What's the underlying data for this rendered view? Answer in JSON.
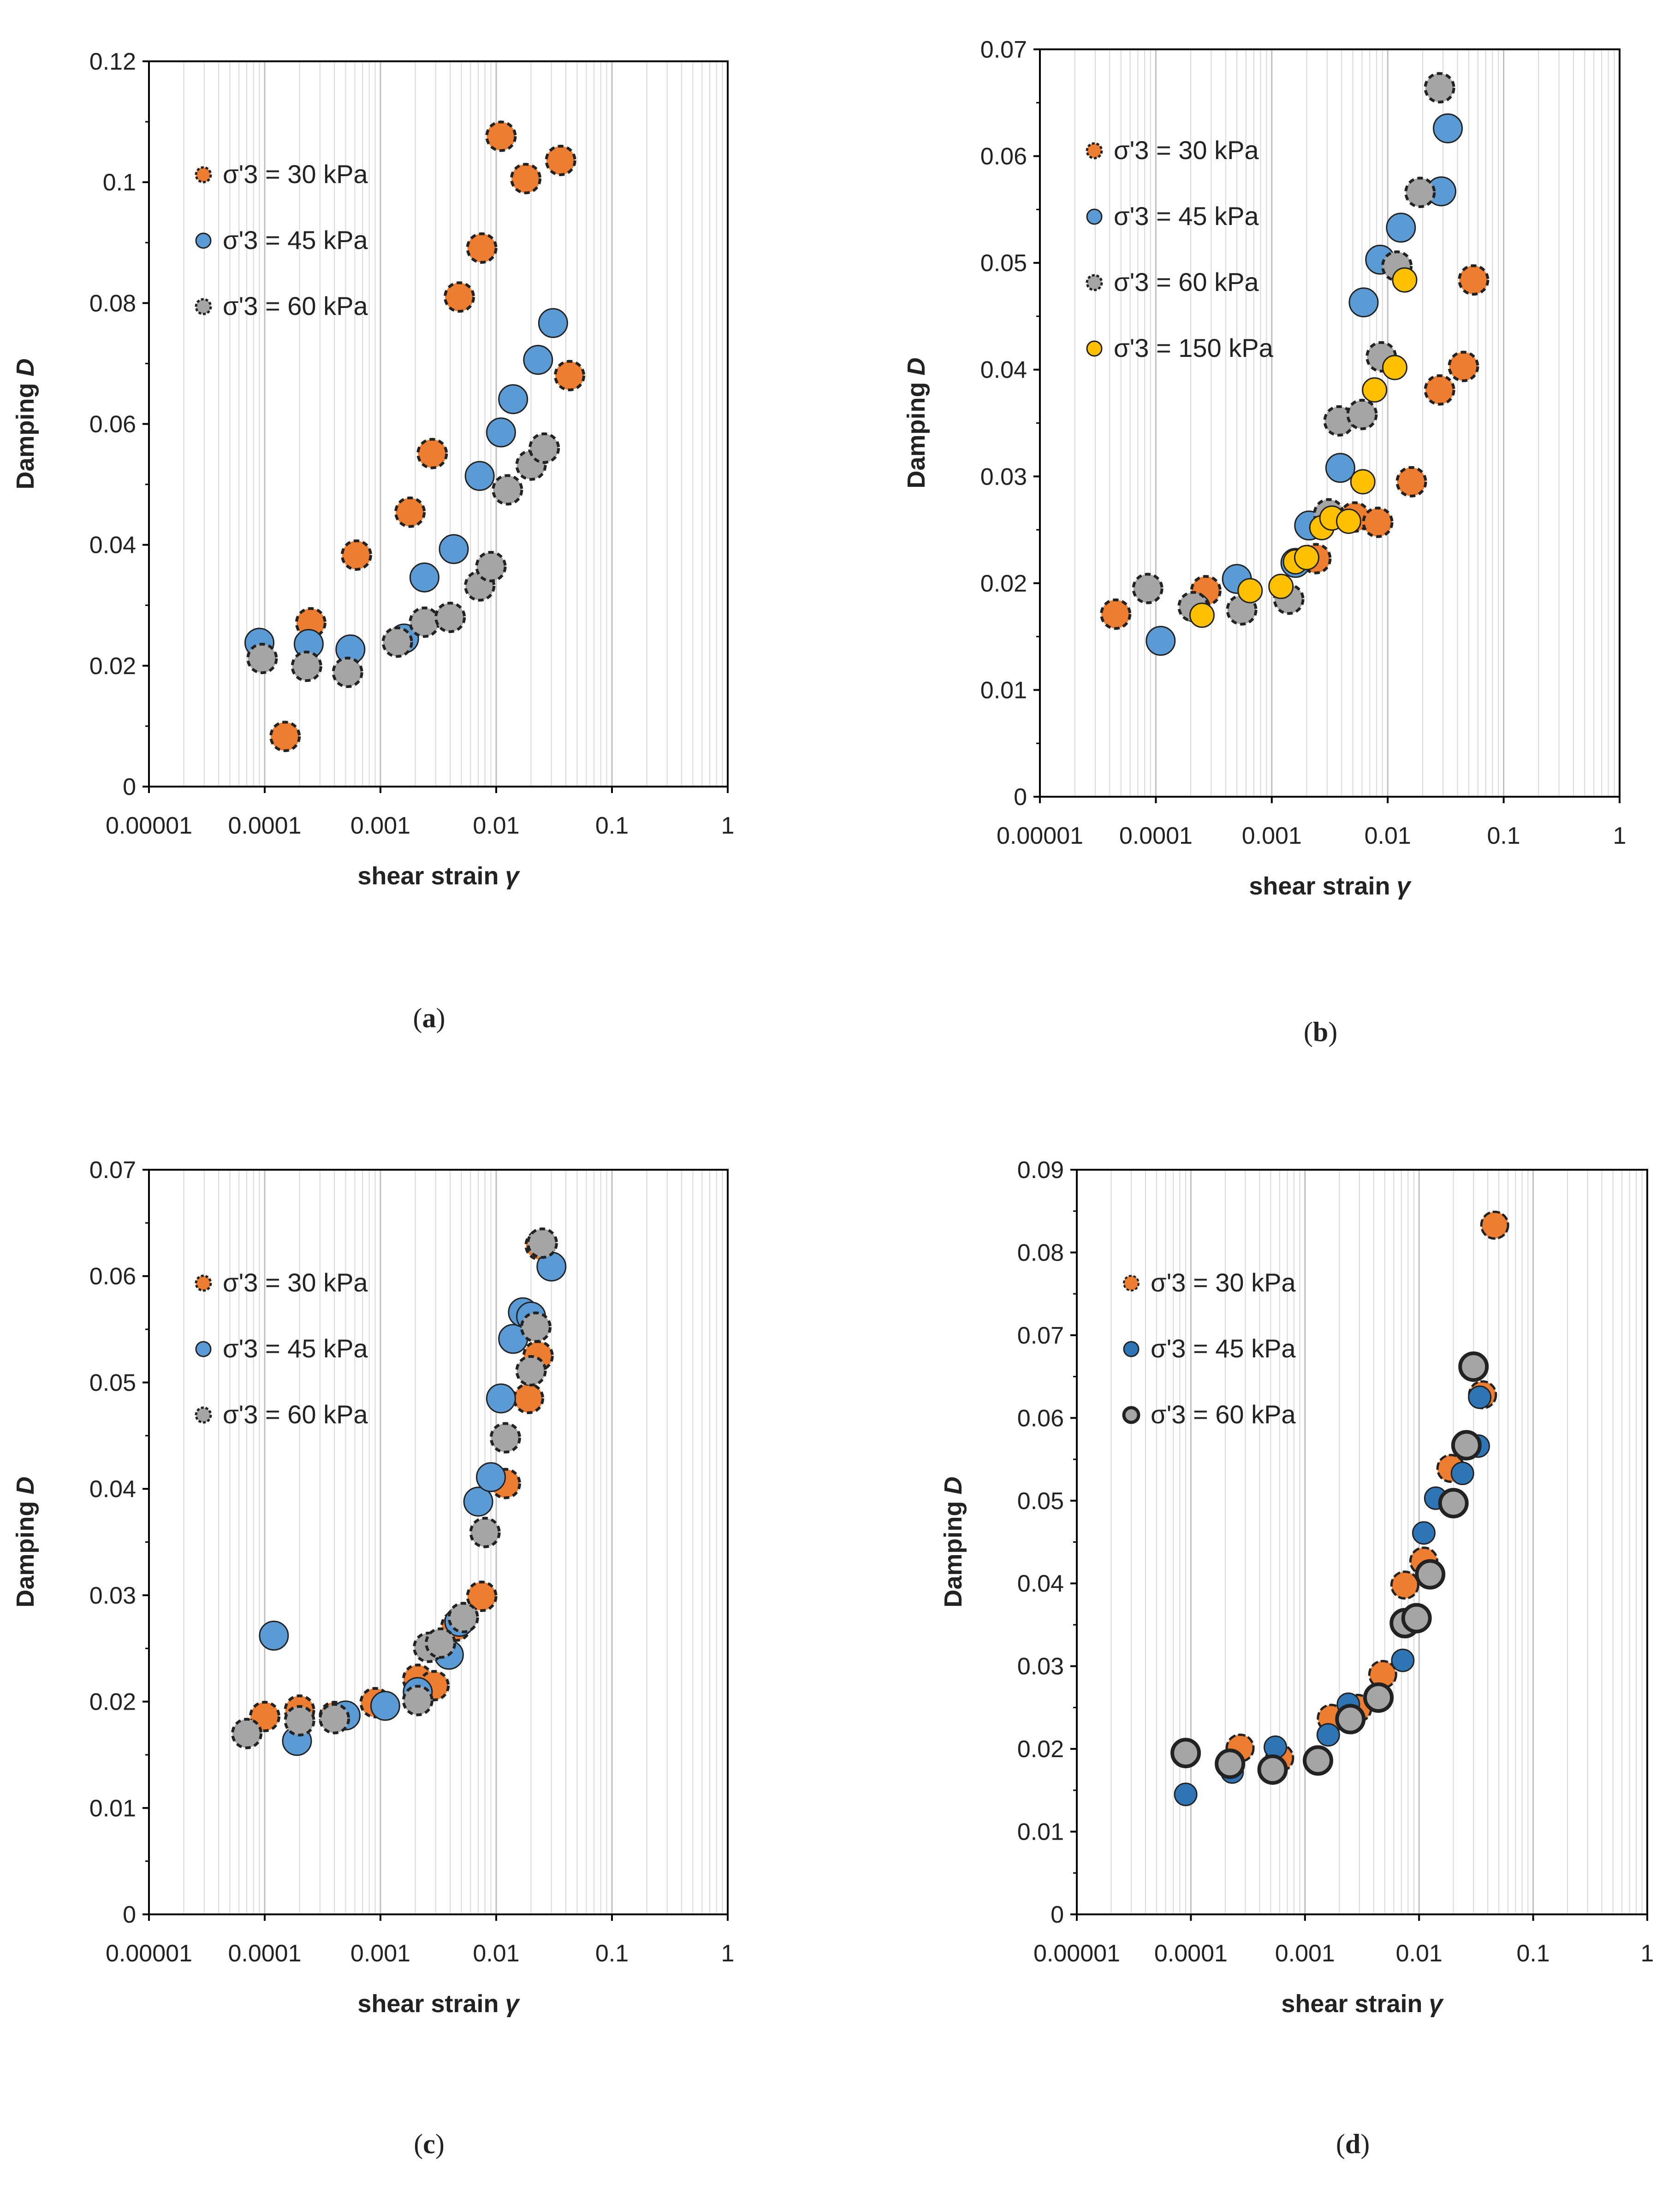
{
  "figure": {
    "panels": [
      {
        "id": "a",
        "label": "(a)",
        "label_letter": "a"
      },
      {
        "id": "b",
        "label": "(b)",
        "label_letter": "b"
      },
      {
        "id": "c",
        "label": "(c)",
        "label_letter": "c"
      },
      {
        "id": "d",
        "label": "(d)",
        "label_letter": "d"
      }
    ]
  },
  "colors": {
    "orange": "#ED7D31",
    "blue": "#5B9BD5",
    "blue_dark": "#2E75B6",
    "gray": "#A5A5A5",
    "yellow": "#FFC000",
    "outline": "#222222",
    "grid_minor": "#D9D9D9",
    "grid_major": "#BFBFBF"
  },
  "chart_data": [
    {
      "id": "a",
      "type": "scatter",
      "title": "",
      "xlabel": "shear strain",
      "xlabel_symbol": "γ",
      "ylabel": "Damping",
      "ylabel_symbol": "D",
      "x_scale": "log",
      "xlim": [
        1e-05,
        1
      ],
      "ylim": [
        0,
        0.12
      ],
      "x_ticks": [
        "0.00001",
        "0.0001",
        "0.001",
        "0.01",
        "0.1",
        "1"
      ],
      "y_ticks": [
        "0",
        "0.02",
        "0.04",
        "0.06",
        "0.08",
        "0.1",
        "0.12"
      ],
      "grid": "vertical, log minor",
      "legend_position": "left",
      "series": [
        {
          "name": "σ'3 = 30 kPa",
          "style": "orange-dashed",
          "points": [
            [
              0.00015,
              0.0083
            ],
            [
              0.00025,
              0.0271
            ],
            [
              0.00062,
              0.0383
            ],
            [
              0.0018,
              0.0454
            ],
            [
              0.0028,
              0.0551
            ],
            [
              0.0048,
              0.081
            ],
            [
              0.0075,
              0.0891
            ],
            [
              0.011,
              0.1076
            ],
            [
              0.018,
              0.1006
            ],
            [
              0.036,
              0.1036
            ],
            [
              0.043,
              0.068
            ]
          ]
        },
        {
          "name": "σ'3 = 45 kPa",
          "style": "blue-solid",
          "points": [
            [
              9e-05,
              0.0238
            ],
            [
              0.00024,
              0.0236
            ],
            [
              0.00055,
              0.0227
            ],
            [
              0.0016,
              0.0245
            ],
            [
              0.0024,
              0.0346
            ],
            [
              0.0043,
              0.0393
            ],
            [
              0.0072,
              0.0514
            ],
            [
              0.011,
              0.0586
            ],
            [
              0.014,
              0.0641
            ],
            [
              0.023,
              0.0706
            ],
            [
              0.031,
              0.0767
            ]
          ]
        },
        {
          "name": "σ'3 = 60 kPa",
          "style": "gray-dashed",
          "points": [
            [
              9.5e-05,
              0.0212
            ],
            [
              0.00023,
              0.0199
            ],
            [
              0.00052,
              0.0189
            ],
            [
              0.0014,
              0.0239
            ],
            [
              0.0024,
              0.0272
            ],
            [
              0.004,
              0.028
            ],
            [
              0.0072,
              0.0332
            ],
            [
              0.009,
              0.0364
            ],
            [
              0.0125,
              0.0491
            ],
            [
              0.02,
              0.0532
            ],
            [
              0.026,
              0.056
            ]
          ]
        }
      ]
    },
    {
      "id": "b",
      "type": "scatter",
      "title": "",
      "xlabel": "shear strain",
      "xlabel_symbol": "γ",
      "ylabel": "Damping",
      "ylabel_symbol": "D",
      "x_scale": "log",
      "xlim": [
        1e-05,
        1
      ],
      "ylim": [
        0,
        0.07
      ],
      "x_ticks": [
        "0.00001",
        "0.0001",
        "0.001",
        "0.01",
        "0.1",
        "1"
      ],
      "y_ticks": [
        "0",
        "0.01",
        "0.02",
        "0.03",
        "0.04",
        "0.05",
        "0.06",
        "0.07"
      ],
      "grid": "vertical, log minor",
      "legend_position": "left",
      "series": [
        {
          "name": "σ'3 = 30 kPa",
          "style": "orange-dashed",
          "points": [
            [
              4.5e-05,
              0.0171
            ],
            [
              0.00027,
              0.0193
            ],
            [
              0.0024,
              0.0223
            ],
            [
              0.0052,
              0.0262
            ],
            [
              0.0082,
              0.0257
            ],
            [
              0.016,
              0.0295
            ],
            [
              0.028,
              0.0381
            ],
            [
              0.045,
              0.0403
            ],
            [
              0.055,
              0.0484
            ]
          ]
        },
        {
          "name": "σ'3 = 45 kPa",
          "style": "blue-solid",
          "points": [
            [
              0.00011,
              0.0146
            ],
            [
              0.00022,
              0.0177
            ],
            [
              0.0005,
              0.0204
            ],
            [
              0.0016,
              0.0219
            ],
            [
              0.0021,
              0.0254
            ],
            [
              0.0039,
              0.0308
            ],
            [
              0.0062,
              0.0463
            ],
            [
              0.0086,
              0.0503
            ],
            [
              0.013,
              0.0533
            ],
            [
              0.029,
              0.0567
            ],
            [
              0.033,
              0.0626
            ]
          ]
        },
        {
          "name": "σ'3 = 60 kPa",
          "style": "gray-dashed",
          "points": [
            [
              8.5e-05,
              0.0195
            ],
            [
              0.00021,
              0.0178
            ],
            [
              0.00055,
              0.0175
            ],
            [
              0.0014,
              0.0185
            ],
            [
              0.0031,
              0.0265
            ],
            [
              0.0038,
              0.0352
            ],
            [
              0.006,
              0.0358
            ],
            [
              0.0088,
              0.0412
            ],
            [
              0.012,
              0.0497
            ],
            [
              0.019,
              0.0566
            ],
            [
              0.028,
              0.0664
            ]
          ]
        },
        {
          "name": "σ'3 = 150 kPa",
          "style": "yellow-solid",
          "points": [
            [
              0.00025,
              0.017
            ],
            [
              0.00065,
              0.0193
            ],
            [
              0.0012,
              0.0197
            ],
            [
              0.0016,
              0.022
            ],
            [
              0.002,
              0.0224
            ],
            [
              0.0027,
              0.0252
            ],
            [
              0.0033,
              0.0261
            ],
            [
              0.0046,
              0.0258
            ],
            [
              0.0061,
              0.0295
            ],
            [
              0.0077,
              0.0381
            ],
            [
              0.0115,
              0.0402
            ],
            [
              0.014,
              0.0484
            ]
          ]
        }
      ]
    },
    {
      "id": "c",
      "type": "scatter",
      "title": "",
      "xlabel": "shear strain",
      "xlabel_symbol": "γ",
      "ylabel": "Damping",
      "ylabel_symbol": "D",
      "x_scale": "log",
      "xlim": [
        1e-05,
        1
      ],
      "ylim": [
        0,
        0.07
      ],
      "x_ticks": [
        "0.00001",
        "0.0001",
        "0.001",
        "0.01",
        "0.1",
        "1"
      ],
      "y_ticks": [
        "0",
        "0.01",
        "0.02",
        "0.03",
        "0.04",
        "0.05",
        "0.06",
        "0.07"
      ],
      "grid": "vertical, log minor",
      "legend_position": "left",
      "series": [
        {
          "name": "σ'3 = 30 kPa",
          "style": "orange-dashed",
          "points": [
            [
              0.0001,
              0.0186
            ],
            [
              0.0002,
              0.0192
            ],
            [
              0.0004,
              0.0186
            ],
            [
              0.0009,
              0.0199
            ],
            [
              0.0021,
              0.0221
            ],
            [
              0.0029,
              0.0215
            ],
            [
              0.0045,
              0.0271
            ],
            [
              0.0075,
              0.0299
            ],
            [
              0.012,
              0.0405
            ],
            [
              0.019,
              0.0485
            ],
            [
              0.023,
              0.0525
            ],
            [
              0.024,
              0.0629
            ]
          ]
        },
        {
          "name": "σ'3 = 45 kPa",
          "style": "blue-solid",
          "points": [
            [
              0.00012,
              0.0262
            ],
            [
              0.00019,
              0.0163
            ],
            [
              0.0005,
              0.0187
            ],
            [
              0.0011,
              0.0196
            ],
            [
              0.0021,
              0.0209
            ],
            [
              0.0039,
              0.0244
            ],
            [
              0.0048,
              0.0275
            ],
            [
              0.007,
              0.0388
            ],
            [
              0.009,
              0.0411
            ],
            [
              0.011,
              0.0485
            ],
            [
              0.014,
              0.0541
            ],
            [
              0.017,
              0.0566
            ],
            [
              0.02,
              0.0562
            ],
            [
              0.03,
              0.0609
            ]
          ]
        },
        {
          "name": "σ'3 = 60 kPa",
          "style": "gray-dashed",
          "points": [
            [
              7e-05,
              0.017
            ],
            [
              0.0002,
              0.0182
            ],
            [
              0.0004,
              0.0184
            ],
            [
              0.0021,
              0.0201
            ],
            [
              0.0026,
              0.0251
            ],
            [
              0.0033,
              0.0255
            ],
            [
              0.0052,
              0.0279
            ],
            [
              0.008,
              0.0359
            ],
            [
              0.012,
              0.0448
            ],
            [
              0.02,
              0.0511
            ],
            [
              0.022,
              0.0552
            ],
            [
              0.025,
              0.0631
            ]
          ]
        }
      ]
    },
    {
      "id": "d",
      "type": "scatter",
      "title": "",
      "xlabel": "shear strain",
      "xlabel_symbol": "γ",
      "ylabel": "Damping",
      "ylabel_symbol": "D",
      "x_scale": "log",
      "xlim": [
        1e-05,
        1
      ],
      "ylim": [
        0,
        0.09
      ],
      "x_ticks": [
        "0.00001",
        "0.0001",
        "0.001",
        "0.01",
        "0.1",
        "1"
      ],
      "y_ticks": [
        "0",
        "0.01",
        "0.02",
        "0.03",
        "0.04",
        "0.05",
        "0.06",
        "0.07",
        "0.08",
        "0.09"
      ],
      "grid": "vertical, log minor",
      "legend_position": "left",
      "series": [
        {
          "name": "σ'3 = 30 kPa",
          "style": "orange-thick",
          "points": [
            [
              0.00027,
              0.0201
            ],
            [
              0.0006,
              0.0189
            ],
            [
              0.0017,
              0.0237
            ],
            [
              0.0029,
              0.0249
            ],
            [
              0.0048,
              0.029
            ],
            [
              0.0075,
              0.0398
            ],
            [
              0.011,
              0.0427
            ],
            [
              0.019,
              0.0539
            ],
            [
              0.036,
              0.0628
            ],
            [
              0.046,
              0.0833
            ]
          ]
        },
        {
          "name": "σ'3 = 45 kPa",
          "style": "blue-small",
          "points": [
            [
              9e-05,
              0.0145
            ],
            [
              0.00023,
              0.0172
            ],
            [
              0.00055,
              0.0202
            ],
            [
              0.0016,
              0.0217
            ],
            [
              0.0024,
              0.0254
            ],
            [
              0.0072,
              0.0307
            ],
            [
              0.011,
              0.0461
            ],
            [
              0.014,
              0.0503
            ],
            [
              0.024,
              0.0533
            ],
            [
              0.033,
              0.0566
            ],
            [
              0.034,
              0.0625
            ]
          ]
        },
        {
          "name": "σ'3 = 60 kPa",
          "style": "gray-thick",
          "points": [
            [
              9e-05,
              0.0195
            ],
            [
              0.00022,
              0.0182
            ],
            [
              0.00052,
              0.0175
            ],
            [
              0.0013,
              0.0186
            ],
            [
              0.0025,
              0.0236
            ],
            [
              0.0044,
              0.0262
            ],
            [
              0.0075,
              0.0352
            ],
            [
              0.0095,
              0.0358
            ],
            [
              0.0125,
              0.0411
            ],
            [
              0.02,
              0.0497
            ],
            [
              0.026,
              0.0567
            ],
            [
              0.03,
              0.0662
            ]
          ]
        }
      ]
    }
  ]
}
